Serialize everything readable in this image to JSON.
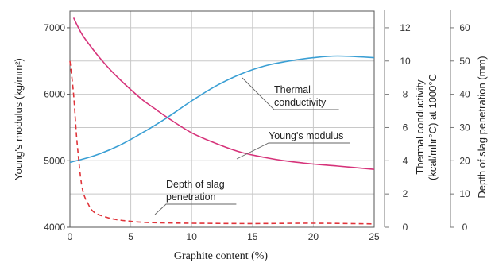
{
  "chart_data": {
    "type": "line",
    "xlabel": "Graphite content (%)",
    "xlim": [
      0,
      25
    ],
    "x_ticks": [
      "0",
      "5",
      "10",
      "15",
      "20",
      "25"
    ],
    "grid": true,
    "axes": {
      "left": {
        "label": "Young's modulus (kg/mm²)",
        "lim": [
          4000,
          7250
        ],
        "ticks": [
          "4000",
          "5000",
          "6000",
          "7000"
        ]
      },
      "right1": {
        "label": "Thermal conductivity (kcal/mhr°C) at 1000°C",
        "lim": [
          0,
          13
        ],
        "ticks": [
          "0",
          "2",
          "4",
          "6",
          "8",
          "10",
          "12"
        ]
      },
      "right2": {
        "label": "Depth of slag penetration (mm)",
        "lim": [
          0,
          65
        ],
        "ticks": [
          "0",
          "10",
          "20",
          "30",
          "40",
          "50",
          "60"
        ]
      }
    },
    "series": [
      {
        "name": "Young's modulus",
        "axis": "left",
        "color": "#d6337a",
        "style": "solid",
        "x": [
          0.3,
          1,
          2,
          3,
          4,
          5,
          6,
          7,
          8,
          10,
          12,
          14,
          16,
          18,
          20,
          22,
          25
        ],
        "y": [
          7150,
          6900,
          6650,
          6430,
          6240,
          6070,
          5910,
          5780,
          5650,
          5420,
          5260,
          5130,
          5050,
          4990,
          4950,
          4920,
          4870
        ]
      },
      {
        "name": "Thermal conductivity",
        "axis": "right1",
        "color": "#3a9fd4",
        "style": "solid",
        "x": [
          0,
          2,
          4,
          6,
          8,
          10,
          12,
          14,
          16,
          18,
          20,
          22,
          25
        ],
        "y": [
          3.9,
          4.3,
          4.9,
          5.7,
          6.6,
          7.6,
          8.5,
          9.2,
          9.7,
          10.0,
          10.2,
          10.3,
          10.2
        ]
      },
      {
        "name": "Depth of slag penetration",
        "axis": "right2",
        "color": "#e0343a",
        "style": "dashed",
        "x": [
          0,
          0.3,
          0.6,
          1,
          1.5,
          2,
          3,
          4,
          5,
          6,
          8,
          10,
          15,
          20,
          25
        ],
        "y": [
          50,
          40,
          25,
          12,
          7,
          4.5,
          3,
          2.2,
          1.8,
          1.5,
          1.3,
          1.2,
          1.1,
          1.2,
          1.0
        ]
      }
    ],
    "annotations": [
      {
        "text_lines": [
          "Thermal",
          "conductivity"
        ],
        "series": "Thermal conductivity"
      },
      {
        "text_lines": [
          "Young's modulus"
        ],
        "series": "Young's modulus"
      },
      {
        "text_lines": [
          "Depth of slag",
          "penetration"
        ],
        "series": "Depth of slag penetration"
      }
    ]
  }
}
